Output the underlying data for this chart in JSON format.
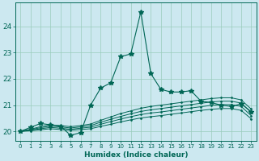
{
  "xlabel": "Humidex (Indice chaleur)",
  "bg_color": "#cce8f0",
  "grid_color": "#99ccbb",
  "line_color": "#006655",
  "xlim": [
    -0.5,
    23.5
  ],
  "ylim": [
    19.65,
    24.9
  ],
  "xticks": [
    0,
    1,
    2,
    3,
    4,
    5,
    6,
    7,
    8,
    9,
    10,
    11,
    12,
    13,
    14,
    15,
    16,
    17,
    18,
    19,
    20,
    21,
    22,
    23
  ],
  "yticks": [
    20,
    21,
    22,
    23,
    24
  ],
  "main_line": {
    "x": [
      0,
      1,
      2,
      3,
      4,
      5,
      6,
      7,
      8,
      9,
      10,
      11,
      12,
      13,
      14,
      15,
      16,
      17,
      18,
      19,
      20,
      21,
      22,
      23
    ],
    "y": [
      20.0,
      20.15,
      20.3,
      20.25,
      20.2,
      19.85,
      19.95,
      21.0,
      21.65,
      21.85,
      22.85,
      22.95,
      24.55,
      22.2,
      21.6,
      21.5,
      21.5,
      21.55,
      21.15,
      21.1,
      21.0,
      20.95,
      21.05,
      20.75
    ]
  },
  "flat_lines": [
    [
      20.0,
      20.08,
      20.18,
      20.25,
      20.22,
      20.18,
      20.22,
      20.28,
      20.42,
      20.55,
      20.68,
      20.78,
      20.88,
      20.95,
      21.0,
      21.05,
      21.1,
      21.15,
      21.2,
      21.25,
      21.28,
      21.28,
      21.2,
      20.85
    ],
    [
      20.0,
      20.06,
      20.14,
      20.2,
      20.17,
      20.13,
      20.17,
      20.22,
      20.35,
      20.46,
      20.57,
      20.67,
      20.76,
      20.82,
      20.87,
      20.92,
      20.97,
      21.02,
      21.07,
      21.12,
      21.15,
      21.15,
      21.08,
      20.72
    ],
    [
      20.0,
      20.04,
      20.1,
      20.15,
      20.12,
      20.08,
      20.12,
      20.16,
      20.27,
      20.37,
      20.47,
      20.56,
      20.64,
      20.7,
      20.74,
      20.79,
      20.84,
      20.89,
      20.94,
      20.99,
      21.02,
      21.02,
      20.95,
      20.6
    ],
    [
      20.0,
      20.02,
      20.06,
      20.1,
      20.07,
      20.04,
      20.07,
      20.1,
      20.19,
      20.27,
      20.36,
      20.44,
      20.51,
      20.56,
      20.6,
      20.65,
      20.7,
      20.75,
      20.8,
      20.84,
      20.87,
      20.87,
      20.8,
      20.48
    ]
  ]
}
